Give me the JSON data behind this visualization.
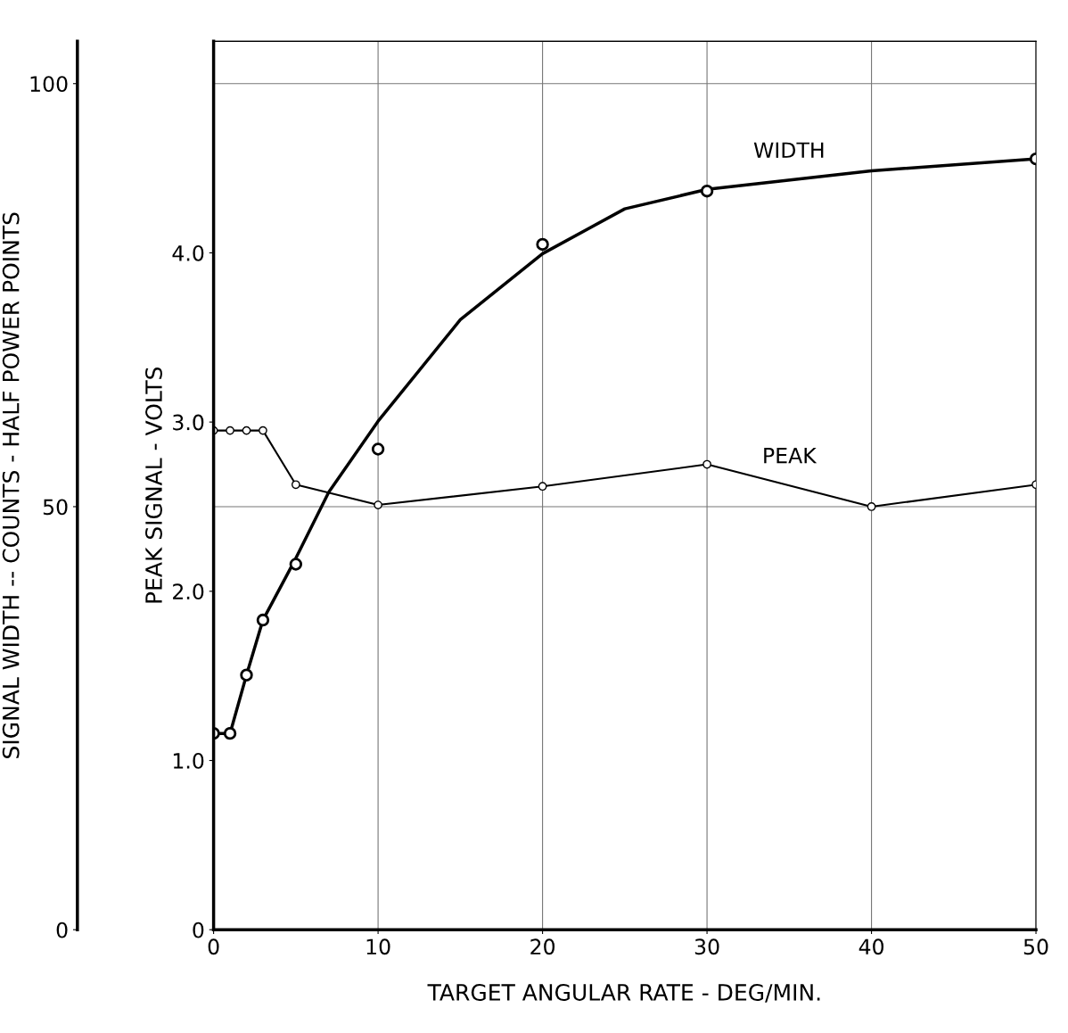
{
  "chart_data": {
    "type": "line",
    "xlabel": "TARGET ANGULAR RATE - DEG/MIN.",
    "ylabel": "SIGNAL WIDTH -- COUNTS - HALF POWER POINTS",
    "y2label": "PEAK SIGNAL - VOLTS",
    "series": [
      {
        "name": "WIDTH",
        "color": "#000000",
        "marker": "none",
        "x": [
          0,
          1,
          2,
          3,
          5,
          7,
          10,
          15,
          20,
          25,
          30,
          40,
          50
        ],
        "values": [
          23.2,
          23.2,
          30.1,
          36.6,
          43.9,
          51.7,
          60.1,
          72.1,
          79.9,
          85.2,
          87.5,
          89.7,
          91.1
        ]
      },
      {
        "type": "scatter",
        "color": "#000000",
        "marker": "circle",
        "x": [
          0,
          1,
          2,
          3,
          5,
          10,
          20,
          30,
          50
        ],
        "values": [
          23.2,
          23.2,
          30.1,
          36.6,
          43.2,
          56.8,
          81,
          87.3,
          91.1
        ]
      },
      {
        "name": "PEAK",
        "axis": "y2",
        "color": "#000000",
        "marker": "circle",
        "x": [
          0,
          1,
          2,
          3,
          5,
          10,
          20,
          30,
          40,
          50
        ],
        "values": [
          2.95,
          2.95,
          2.95,
          2.95,
          2.63,
          2.51,
          2.62,
          2.75,
          2.5,
          2.63
        ]
      }
    ],
    "xlim": [
      0,
      50
    ],
    "xticks": [
      0,
      10,
      20,
      30,
      40,
      50
    ],
    "ylim": [
      0,
      105
    ],
    "yticks": [
      0,
      50,
      100
    ],
    "y2lim": [
      0,
      5.25
    ],
    "y2ticks": [
      0,
      {
        "value": 1,
        "label": "1.0"
      },
      {
        "value": 2,
        "label": "2.0"
      },
      {
        "value": 3,
        "label": "3.0"
      },
      {
        "value": 4,
        "label": "4.0"
      }
    ],
    "grid": true,
    "legend": false
  }
}
